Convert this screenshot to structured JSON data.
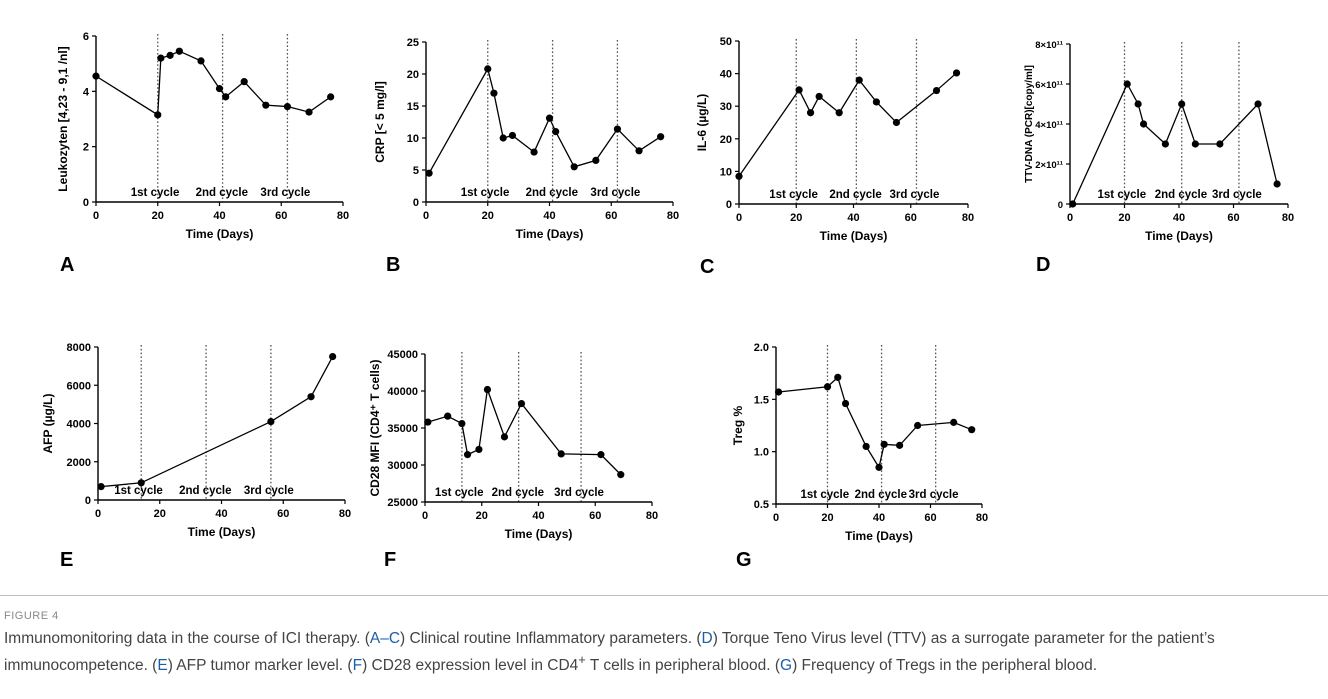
{
  "figure_label": "FIGURE 4",
  "caption": [
    {
      "t": "Immunomonitoring data in the course of ICI therapy. ("
    },
    {
      "t": "A–C",
      "link": true
    },
    {
      "t": ") Clinical routine Inflammatory parameters. ("
    },
    {
      "t": "D",
      "link": true
    },
    {
      "t": ") Torque Teno Virus level (TTV) as a surrogate parameter for the patient’s immunocompetence. ("
    },
    {
      "t": "E",
      "link": true
    },
    {
      "t": ") AFP tumor marker level. ("
    },
    {
      "t": "F",
      "link": true
    },
    {
      "t": ") CD28 expression level in CD4"
    },
    {
      "t": "+",
      "sup": true
    },
    {
      "t": " T cells in peripheral blood. ("
    },
    {
      "t": "G",
      "link": true
    },
    {
      "t": ") Frequency of Tregs in the peripheral blood."
    }
  ],
  "chart_data": [
    {
      "panel": "A",
      "type": "line",
      "ylabel": "Leukozyten [4,23 - 9,1 /nl]",
      "xlabel": "Time (Days)",
      "xlim": [
        0,
        80
      ],
      "ylim": [
        0,
        6
      ],
      "xticks": [
        "0",
        "20",
        "40",
        "60",
        "80"
      ],
      "xtick_values": [
        0,
        20,
        40,
        60,
        80
      ],
      "yticks": [
        "0",
        "2",
        "4",
        "6"
      ],
      "ytick_values": [
        0,
        2,
        4,
        6
      ],
      "x": [
        0,
        20,
        21,
        24,
        27,
        34,
        40,
        42,
        48,
        55,
        62,
        69,
        76
      ],
      "y": [
        4.55,
        3.15,
        5.2,
        5.3,
        5.45,
        5.1,
        4.1,
        3.8,
        4.35,
        3.5,
        3.45,
        3.25,
        3.8
      ],
      "cycle_lines": [
        20,
        41,
        62
      ],
      "cycle_labels": [
        "1st cycle",
        "2nd cycle",
        "3rd cycle"
      ]
    },
    {
      "panel": "B",
      "type": "line",
      "ylabel": "CRP [< 5 mg/l]",
      "xlabel": "Time (Days)",
      "xlim": [
        0,
        80
      ],
      "ylim": [
        0,
        25
      ],
      "xticks": [
        "0",
        "20",
        "40",
        "60",
        "80"
      ],
      "xtick_values": [
        0,
        20,
        40,
        60,
        80
      ],
      "yticks": [
        "0",
        "5",
        "10",
        "15",
        "20",
        "25"
      ],
      "ytick_values": [
        0,
        5,
        10,
        15,
        20,
        25
      ],
      "x": [
        1,
        20,
        22,
        25,
        28,
        35,
        40,
        42,
        48,
        55,
        62,
        69,
        76
      ],
      "y": [
        4.5,
        20.8,
        17.0,
        10.0,
        10.4,
        7.8,
        13.1,
        11.0,
        5.5,
        6.5,
        11.4,
        8.0,
        10.2
      ],
      "cycle_lines": [
        20,
        41,
        62
      ],
      "cycle_labels": [
        "1st cycle",
        "2nd cycle",
        "3rd cycle"
      ]
    },
    {
      "panel": "C",
      "type": "line",
      "ylabel": "IL-6 (µg/L)",
      "xlabel": "Time (Days)",
      "xlim": [
        0,
        80
      ],
      "ylim": [
        0,
        50
      ],
      "xticks": [
        "0",
        "20",
        "40",
        "60",
        "80"
      ],
      "xtick_values": [
        0,
        20,
        40,
        60,
        80
      ],
      "yticks": [
        "0",
        "10",
        "20",
        "30",
        "40",
        "50"
      ],
      "ytick_values": [
        0,
        10,
        20,
        30,
        40,
        50
      ],
      "x": [
        0,
        21,
        25,
        28,
        35,
        42,
        48,
        55,
        69,
        76
      ],
      "y": [
        8.5,
        35.0,
        28.0,
        33.0,
        28.0,
        38.0,
        31.3,
        25.0,
        34.8,
        40.2
      ],
      "cycle_lines": [
        20,
        41,
        62
      ],
      "cycle_labels": [
        "1st cycle",
        "2nd cycle",
        "3rd cycle"
      ]
    },
    {
      "panel": "D",
      "type": "line",
      "ylabel": "TTV-DNA (PCR)[copy/ml]",
      "xlabel": "Time (Days)",
      "xlim": [
        0,
        80
      ],
      "ylim": [
        0,
        800000000000
      ],
      "xticks": [
        "0",
        "20",
        "40",
        "60",
        "80"
      ],
      "xtick_values": [
        0,
        20,
        40,
        60,
        80
      ],
      "yticks": [
        "0",
        "2×10¹¹",
        "4×10¹¹",
        "6×10¹¹",
        "8×10¹¹"
      ],
      "ytick_values": [
        0,
        200000000000,
        400000000000,
        600000000000,
        800000000000
      ],
      "x": [
        1,
        21,
        25,
        27,
        35,
        41,
        46,
        55,
        69,
        76
      ],
      "y": [
        0,
        600000000000,
        500000000000,
        400000000000,
        300000000000,
        500000000000,
        300000000000,
        300000000000,
        500000000000,
        100000000000
      ],
      "cycle_lines": [
        20,
        41,
        62
      ],
      "cycle_labels": [
        "1st cycle",
        "2nd cycle",
        "3rd cycle"
      ]
    },
    {
      "panel": "E",
      "type": "line",
      "ylabel": "AFP (µg/L)",
      "xlabel": "Time (Days)",
      "xlim": [
        0,
        80
      ],
      "ylim": [
        0,
        8000
      ],
      "xticks": [
        "0",
        "20",
        "40",
        "60",
        "80"
      ],
      "xtick_values": [
        0,
        20,
        40,
        60,
        80
      ],
      "yticks": [
        "0",
        "2000",
        "4000",
        "6000",
        "8000"
      ],
      "ytick_values": [
        0,
        2000,
        4000,
        6000,
        8000
      ],
      "x": [
        1,
        14,
        56,
        69,
        76
      ],
      "y": [
        700,
        900,
        4100,
        5400,
        7500
      ],
      "cycle_lines": [
        14,
        35,
        56
      ],
      "cycle_labels": [
        "1st cycle",
        "2nd cycle",
        "3rd cycle"
      ]
    },
    {
      "panel": "F",
      "type": "line",
      "ylabel": "CD28 MFI (CD4⁺ T cells)",
      "xlabel": "Time (Days)",
      "xlim": [
        0,
        80
      ],
      "ylim": [
        25000,
        45000
      ],
      "xticks": [
        "0",
        "20",
        "40",
        "60",
        "80"
      ],
      "xtick_values": [
        0,
        20,
        40,
        60,
        80
      ],
      "yticks": [
        "25000",
        "30000",
        "35000",
        "40000",
        "45000"
      ],
      "ytick_values": [
        25000,
        30000,
        35000,
        40000,
        45000
      ],
      "x": [
        1,
        8,
        13,
        15,
        19,
        22,
        28,
        34,
        48,
        62,
        69
      ],
      "y": [
        35800,
        36600,
        35600,
        31400,
        32100,
        40200,
        33800,
        38300,
        31500,
        31400,
        28700
      ],
      "cycle_lines": [
        13,
        33,
        55
      ],
      "cycle_labels": [
        "1st cycle",
        "2nd cycle",
        "3rd cycle"
      ]
    },
    {
      "panel": "G",
      "type": "line",
      "ylabel": "Treg %",
      "xlabel": "Time (Days)",
      "xlim": [
        0,
        80
      ],
      "ylim": [
        0.5,
        2.0
      ],
      "xticks": [
        "0",
        "20",
        "40",
        "60",
        "80"
      ],
      "xtick_values": [
        0,
        20,
        40,
        60,
        80
      ],
      "yticks": [
        "0.5",
        "1.0",
        "1.5",
        "2.0"
      ],
      "ytick_values": [
        0.5,
        1.0,
        1.5,
        2.0
      ],
      "x": [
        1,
        20,
        24,
        27,
        35,
        40,
        42,
        48,
        55,
        69,
        76
      ],
      "y": [
        1.57,
        1.62,
        1.71,
        1.46,
        1.05,
        0.85,
        1.07,
        1.06,
        1.25,
        1.28,
        1.21
      ],
      "cycle_lines": [
        20,
        41,
        62
      ],
      "cycle_labels": [
        "1st cycle",
        "2nd cycle",
        "3rd cycle"
      ]
    }
  ]
}
